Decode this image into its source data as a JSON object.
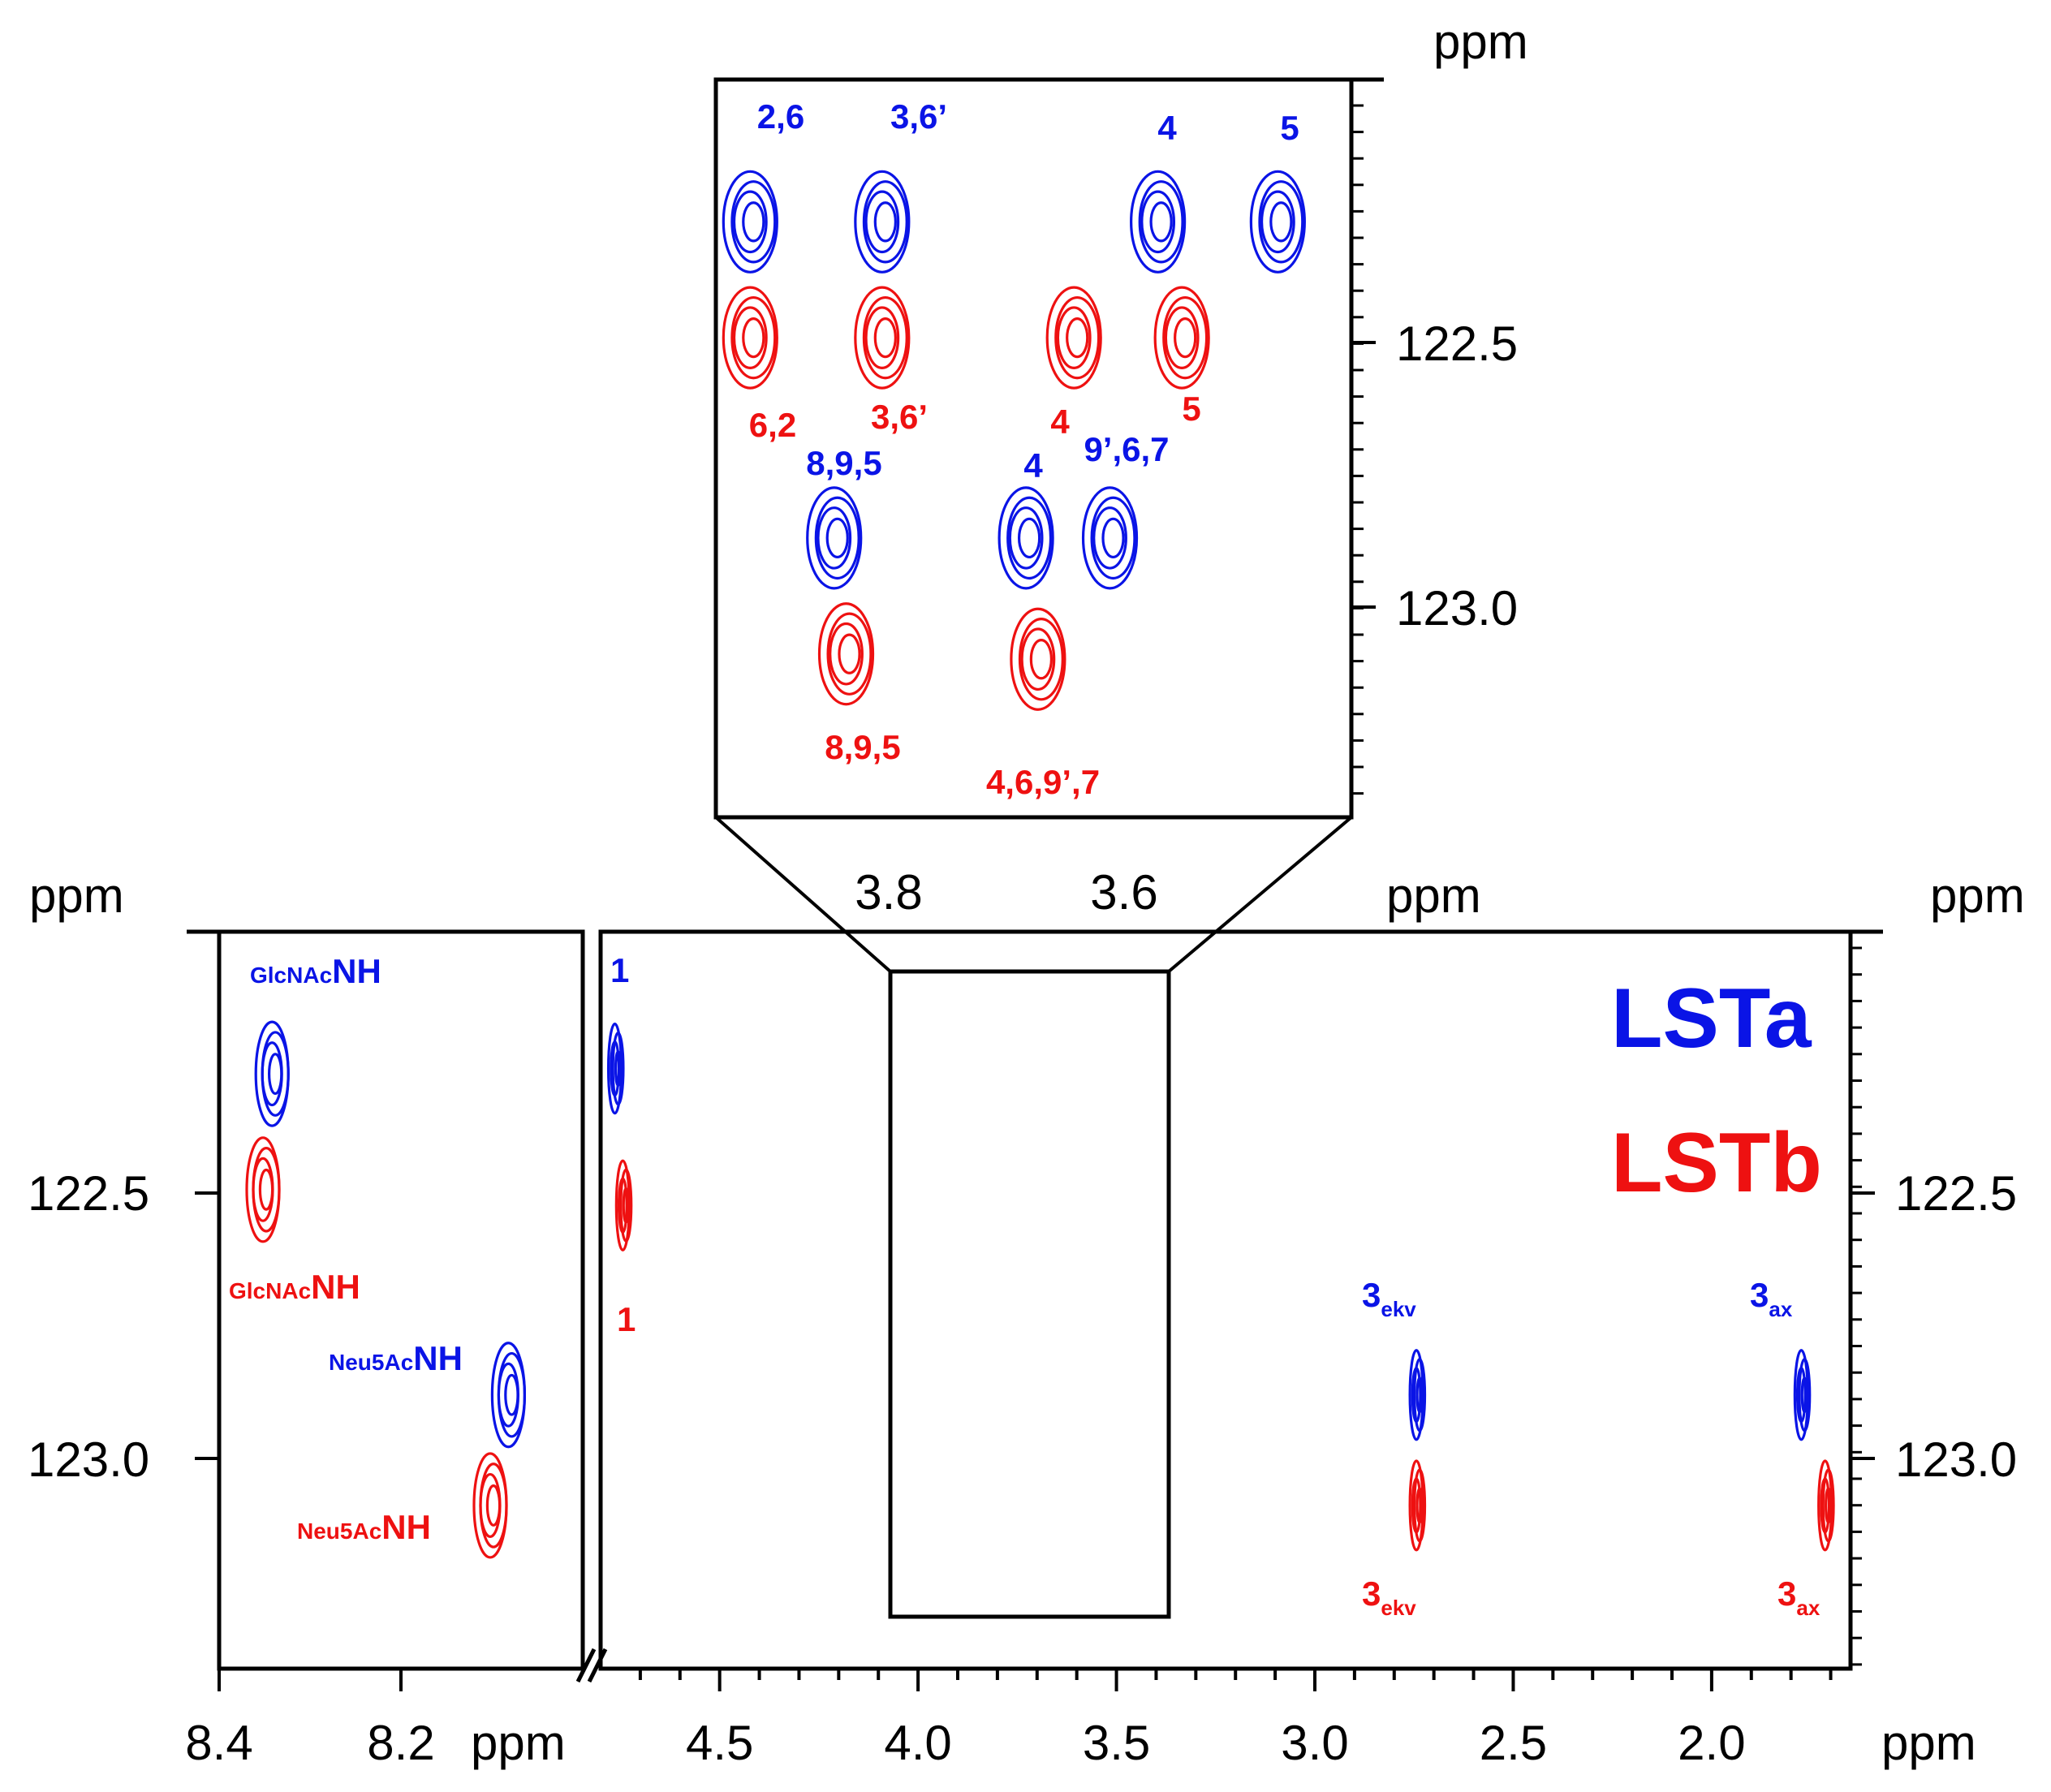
{
  "colors": {
    "lsta": "#0a14e6",
    "lstb": "#ee1111",
    "axis": "#000000"
  },
  "legend": [
    {
      "name": "LSTa",
      "color": "#0a14e6"
    },
    {
      "name": "LSTb",
      "color": "#ee1111"
    }
  ],
  "chart_data": [
    {
      "type": "contour",
      "panel": "NH region",
      "x_axis": {
        "range": [
          8.4,
          8.0
        ],
        "ticks": [
          "8.4",
          "8.2"
        ],
        "unit": "ppm"
      },
      "y_axis": {
        "range": [
          122.0,
          123.4
        ],
        "ticks": [
          "122.5",
          "123.0"
        ],
        "unit": "ppm"
      },
      "unit_labels": {
        "x": "ppm",
        "y": "ppm"
      },
      "peaks": [
        {
          "series": "LSTa",
          "x": 8.34,
          "y": 122.27,
          "prefix": "GlcNAc",
          "label": "NH"
        },
        {
          "series": "LSTb",
          "x": 8.35,
          "y": 122.49,
          "prefix": "GlcNAc",
          "label": "NH"
        },
        {
          "series": "LSTa",
          "x": 8.08,
          "y": 122.88,
          "prefix": "Neu5Ac",
          "label": "NH"
        },
        {
          "series": "LSTb",
          "x": 8.1,
          "y": 123.09,
          "prefix": "Neu5Ac",
          "label": "NH"
        }
      ]
    },
    {
      "type": "contour",
      "panel": "sugar region",
      "x_axis": {
        "range": [
          4.8,
          1.65
        ],
        "ticks": [
          "4.5",
          "4.0",
          "3.5",
          "3.0",
          "2.5",
          "2.0"
        ],
        "unit": "ppm"
      },
      "y_axis": {
        "range": [
          122.0,
          123.4
        ],
        "ticks": [
          "122.5",
          "123.0"
        ],
        "unit": "ppm"
      },
      "unit_labels": {
        "x": "ppm",
        "y_left": "ppm",
        "y_right": "ppm"
      },
      "peaks": [
        {
          "series": "LSTa",
          "x": 4.76,
          "y": 122.26,
          "label": "1"
        },
        {
          "series": "LSTb",
          "x": 4.74,
          "y": 122.52,
          "label": "1"
        },
        {
          "series": "LSTa",
          "x": 2.74,
          "y": 122.88,
          "label": "3",
          "sub": "ekv"
        },
        {
          "series": "LSTb",
          "x": 2.74,
          "y": 123.09,
          "label": "3",
          "sub": "ekv"
        },
        {
          "series": "LSTa",
          "x": 1.77,
          "y": 122.88,
          "label": "3",
          "sub": "ax"
        },
        {
          "series": "LSTb",
          "x": 1.71,
          "y": 123.09,
          "label": "3",
          "sub": "ax"
        }
      ],
      "zoom_box": {
        "x_range": [
          4.03,
          3.33
        ],
        "y_range": [
          122.07,
          123.3
        ]
      }
    },
    {
      "type": "contour",
      "panel": "zoom inset",
      "x_axis": {
        "range": [
          3.94,
          3.41
        ],
        "ticks": [
          "3.8",
          "3.6"
        ],
        "unit": "ppm"
      },
      "y_axis": {
        "range": [
          122.0,
          123.4
        ],
        "ticks": [
          "122.5",
          "123.0"
        ],
        "unit": "ppm"
      },
      "unit_labels": {
        "y": "ppm"
      },
      "peaks": [
        {
          "series": "LSTa",
          "x": 3.91,
          "y": 122.27,
          "label": "2,6"
        },
        {
          "series": "LSTa",
          "x": 3.8,
          "y": 122.27,
          "label": "3,6’"
        },
        {
          "series": "LSTa",
          "x": 3.57,
          "y": 122.27,
          "label": "4"
        },
        {
          "series": "LSTa",
          "x": 3.47,
          "y": 122.27,
          "label": "5"
        },
        {
          "series": "LSTb",
          "x": 3.91,
          "y": 122.49,
          "label": "6,2"
        },
        {
          "series": "LSTb",
          "x": 3.8,
          "y": 122.49,
          "label": "3,6’"
        },
        {
          "series": "LSTb",
          "x": 3.64,
          "y": 122.49,
          "label": "4"
        },
        {
          "series": "LSTb",
          "x": 3.55,
          "y": 122.49,
          "label": "5"
        },
        {
          "series": "LSTa",
          "x": 3.84,
          "y": 122.87,
          "label": "8,9,5"
        },
        {
          "series": "LSTa",
          "x": 3.68,
          "y": 122.87,
          "label": "4"
        },
        {
          "series": "LSTa",
          "x": 3.61,
          "y": 122.87,
          "label": "9’,6,7"
        },
        {
          "series": "LSTb",
          "x": 3.83,
          "y": 123.09,
          "label": "8,9,5"
        },
        {
          "series": "LSTb",
          "x": 3.67,
          "y": 123.1,
          "label": "4,6,9’,7"
        }
      ]
    }
  ]
}
